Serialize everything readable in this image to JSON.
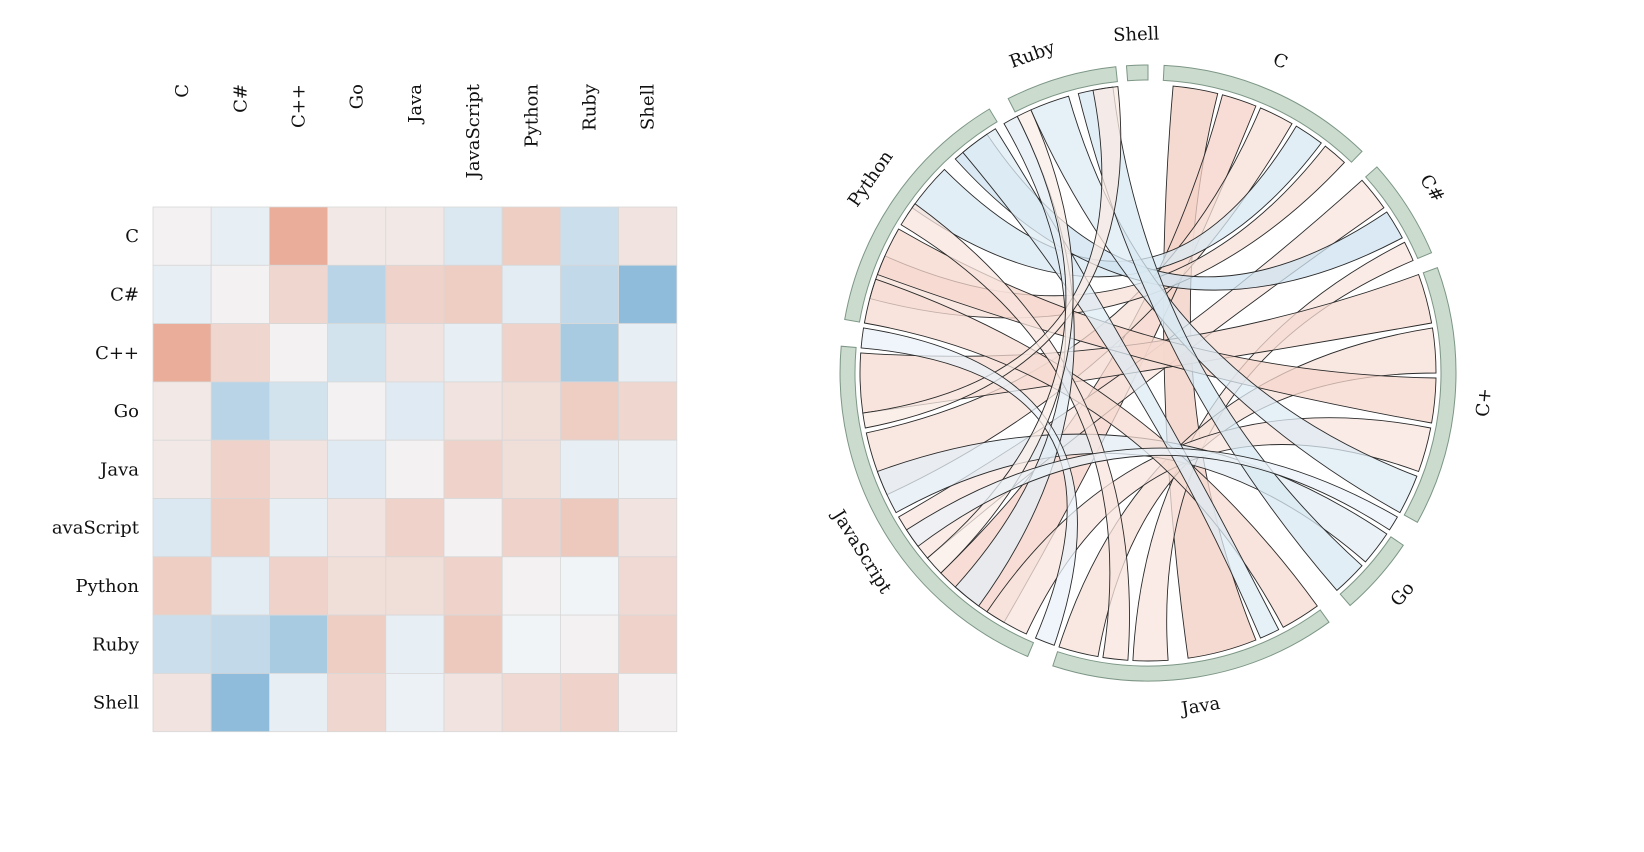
{
  "chart_data": [
    {
      "type": "heatmap",
      "row_labels": [
        "C",
        "C#",
        "C++",
        "Go",
        "Java",
        "avaScript",
        "Python",
        "Ruby",
        "Shell"
      ],
      "col_labels": [
        "C",
        "C#",
        "C++",
        "Go",
        "Java",
        "JavaScript",
        "Python",
        "Ruby",
        "Shell"
      ],
      "values": [
        [
          0.03,
          -0.08,
          0.45,
          0.08,
          0.08,
          -0.15,
          0.25,
          -0.25,
          0.12
        ],
        [
          -0.08,
          0.03,
          0.2,
          -0.35,
          0.22,
          0.25,
          -0.1,
          -0.3,
          -0.6
        ],
        [
          0.45,
          0.2,
          0.03,
          -0.2,
          0.12,
          -0.08,
          0.22,
          -0.45,
          -0.08
        ],
        [
          0.08,
          -0.35,
          -0.2,
          0.03,
          -0.12,
          0.12,
          0.15,
          0.25,
          0.2
        ],
        [
          0.08,
          0.22,
          0.12,
          -0.12,
          0.03,
          0.22,
          0.15,
          -0.08,
          -0.05
        ],
        [
          -0.15,
          0.25,
          -0.08,
          0.12,
          0.22,
          0.03,
          0.22,
          0.28,
          0.12
        ],
        [
          0.25,
          -0.1,
          0.22,
          0.15,
          0.15,
          0.22,
          0.03,
          -0.02,
          0.18
        ],
        [
          -0.25,
          -0.3,
          -0.45,
          0.25,
          -0.08,
          0.28,
          -0.02,
          0.03,
          0.22
        ],
        [
          0.12,
          -0.6,
          -0.08,
          0.2,
          -0.05,
          0.12,
          0.18,
          0.22,
          0.03
        ]
      ],
      "colors": {
        "positive": "#e8a58e",
        "negative": "#8fbcdb",
        "neutral": "#f4f6f8"
      }
    },
    {
      "type": "chord",
      "groups": [
        "C",
        "C#",
        "C+",
        "Go",
        "Java",
        "JavaScript",
        "Python",
        "Ruby",
        "Shell"
      ],
      "arc_color": "#cbdccf",
      "arc_stroke": "#7d9685"
    }
  ]
}
